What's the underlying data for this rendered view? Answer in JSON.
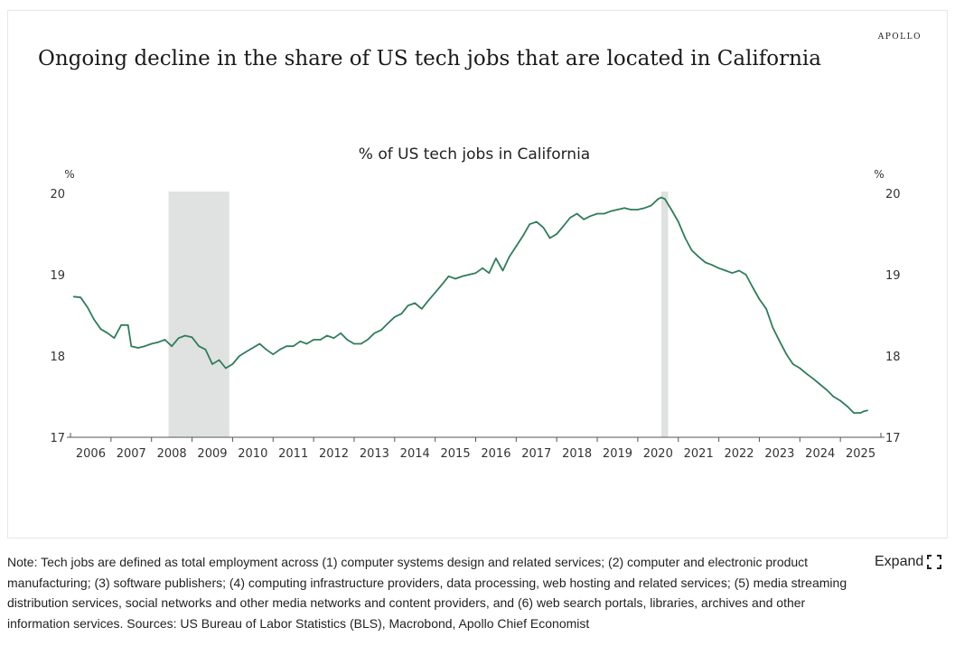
{
  "brand": "APOLLO",
  "headline": "Ongoing decline in the share of US tech jobs that are located in California",
  "footer": {
    "note": "Note: Tech jobs are defined as total employment across (1) computer systems design and related services; (2) computer and electronic product manufacturing; (3) software publishers; (4) computing infrastructure providers, data processing, web hosting and related services; (5) media streaming distribution services, social networks and other media networks and content providers, and (6) web search portals, libraries, archives and other information services. Sources: US Bureau of Labor Statistics (BLS), Macrobond, Apollo Chief Economist",
    "expand_label": "Expand",
    "expand_icon": "expand-icon"
  },
  "colors": {
    "line": "#2f7d5a",
    "recession": "#dfe2e1",
    "axis": "#555555",
    "text": "#222222"
  },
  "chart_data": {
    "type": "line",
    "title": "% of US tech jobs in California",
    "ylabel_left": "%",
    "ylabel_right": "%",
    "xlabel": "",
    "ylim": [
      17,
      20
    ],
    "xlim": [
      2005.5,
      2025.5
    ],
    "yticks": [
      17,
      18,
      19,
      20
    ],
    "x_tick_labels": [
      "2006",
      "2007",
      "2008",
      "2009",
      "2010",
      "2011",
      "2012",
      "2013",
      "2014",
      "2015",
      "2016",
      "2017",
      "2018",
      "2019",
      "2020",
      "2021",
      "2022",
      "2023",
      "2024",
      "2025"
    ],
    "recessions": [
      [
        2007.92,
        2009.42
      ],
      [
        2020.08,
        2020.25
      ]
    ],
    "series": [
      {
        "name": "% of US tech jobs in California",
        "x": [
          2005.58,
          2005.75,
          2005.92,
          2006.08,
          2006.25,
          2006.42,
          2006.58,
          2006.75,
          2006.92,
          2007.0,
          2007.17,
          2007.33,
          2007.5,
          2007.67,
          2007.83,
          2008.0,
          2008.17,
          2008.33,
          2008.5,
          2008.67,
          2008.83,
          2009.0,
          2009.17,
          2009.33,
          2009.5,
          2009.67,
          2009.83,
          2010.0,
          2010.17,
          2010.33,
          2010.5,
          2010.67,
          2010.83,
          2011.0,
          2011.17,
          2011.33,
          2011.5,
          2011.67,
          2011.83,
          2012.0,
          2012.17,
          2012.33,
          2012.5,
          2012.67,
          2012.83,
          2013.0,
          2013.17,
          2013.33,
          2013.5,
          2013.67,
          2013.83,
          2014.0,
          2014.17,
          2014.33,
          2014.5,
          2014.67,
          2014.83,
          2015.0,
          2015.17,
          2015.33,
          2015.5,
          2015.67,
          2015.83,
          2016.0,
          2016.17,
          2016.33,
          2016.5,
          2016.67,
          2016.83,
          2017.0,
          2017.17,
          2017.33,
          2017.5,
          2017.67,
          2017.83,
          2018.0,
          2018.17,
          2018.33,
          2018.5,
          2018.67,
          2018.83,
          2019.0,
          2019.17,
          2019.33,
          2019.5,
          2019.67,
          2019.83,
          2020.0,
          2020.08,
          2020.17,
          2020.33,
          2020.5,
          2020.67,
          2020.83,
          2021.0,
          2021.17,
          2021.33,
          2021.5,
          2021.67,
          2021.83,
          2022.0,
          2022.17,
          2022.33,
          2022.5,
          2022.67,
          2022.83,
          2023.0,
          2023.17,
          2023.33,
          2023.5,
          2023.67,
          2023.83,
          2024.0,
          2024.17,
          2024.33,
          2024.5,
          2024.67,
          2024.83,
          2025.0,
          2025.08,
          2025.17
        ],
        "values": [
          18.73,
          18.72,
          18.6,
          18.45,
          18.33,
          18.28,
          18.22,
          18.38,
          18.38,
          18.12,
          18.1,
          18.12,
          18.15,
          18.17,
          18.2,
          18.12,
          18.22,
          18.25,
          18.23,
          18.12,
          18.08,
          17.9,
          17.95,
          17.85,
          17.9,
          18.0,
          18.05,
          18.1,
          18.15,
          18.08,
          18.02,
          18.08,
          18.12,
          18.12,
          18.18,
          18.15,
          18.2,
          18.2,
          18.25,
          18.22,
          18.28,
          18.2,
          18.15,
          18.15,
          18.2,
          18.28,
          18.32,
          18.4,
          18.48,
          18.52,
          18.62,
          18.65,
          18.58,
          18.68,
          18.78,
          18.88,
          18.98,
          18.95,
          18.98,
          19.0,
          19.02,
          19.08,
          19.02,
          19.2,
          19.05,
          19.22,
          19.35,
          19.48,
          19.62,
          19.65,
          19.58,
          19.45,
          19.5,
          19.6,
          19.7,
          19.75,
          19.68,
          19.72,
          19.75,
          19.75,
          19.78,
          19.8,
          19.82,
          19.8,
          19.8,
          19.82,
          19.85,
          19.93,
          19.95,
          19.93,
          19.8,
          19.65,
          19.45,
          19.3,
          19.22,
          19.15,
          19.12,
          19.08,
          19.05,
          19.02,
          19.05,
          19.0,
          18.85,
          18.7,
          18.58,
          18.35,
          18.18,
          18.02,
          17.9,
          17.85,
          17.78,
          17.72,
          17.65,
          17.58,
          17.5,
          17.45,
          17.38,
          17.3,
          17.3,
          17.32,
          17.33
        ]
      }
    ]
  }
}
